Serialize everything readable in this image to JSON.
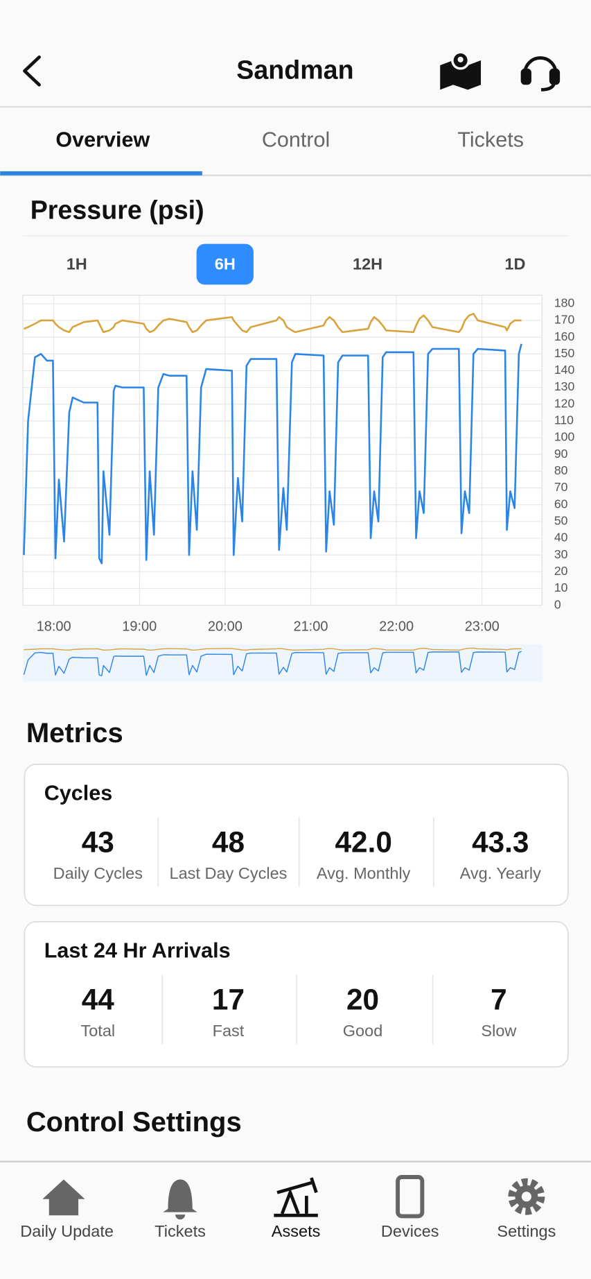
{
  "header": {
    "title": "Sandman"
  },
  "tabs": [
    "Overview",
    "Control",
    "Tickets"
  ],
  "section_title": "Pressure (psi)",
  "ranges": [
    "1H",
    "6H",
    "12H",
    "1D"
  ],
  "chart_data": {
    "type": "line",
    "x": [
      17.65,
      17.7,
      17.78,
      17.85,
      17.92,
      17.99,
      18.02,
      18.06,
      18.12,
      18.18,
      18.22,
      18.35,
      18.51,
      18.53,
      18.56,
      18.58,
      18.65,
      18.7,
      18.72,
      18.8,
      19.05,
      19.08,
      19.12,
      19.17,
      19.22,
      19.28,
      19.35,
      19.55,
      19.58,
      19.62,
      19.67,
      19.72,
      19.78,
      20.08,
      20.1,
      20.15,
      20.2,
      20.25,
      20.3,
      20.6,
      20.63,
      20.68,
      20.72,
      20.78,
      20.82,
      21.15,
      21.18,
      21.22,
      21.27,
      21.32,
      21.37,
      21.67,
      21.7,
      21.74,
      21.79,
      21.84,
      21.88,
      22.2,
      22.23,
      22.27,
      22.32,
      22.37,
      22.42,
      22.73,
      22.76,
      22.8,
      22.85,
      22.9,
      22.95,
      23.27,
      23.29,
      23.33,
      23.38,
      23.43,
      23.46
    ],
    "series": [
      {
        "color": "#d9a23a",
        "values": [
          165,
          166,
          168,
          170,
          170,
          170,
          168,
          166,
          164,
          163,
          166,
          169,
          170,
          168,
          165,
          163,
          164,
          166,
          168,
          170,
          168,
          165,
          163,
          164,
          167,
          170,
          171,
          169,
          166,
          163,
          164,
          167,
          170,
          172,
          170,
          167,
          164,
          163,
          166,
          170,
          172,
          170,
          166,
          164,
          163,
          167,
          170,
          172,
          170,
          166,
          163,
          165,
          169,
          172,
          170,
          167,
          164,
          163,
          167,
          171,
          173,
          170,
          166,
          163,
          165,
          170,
          173,
          174,
          170,
          166,
          164,
          168,
          170,
          170,
          170
        ]
      },
      {
        "color": "#2a85e6",
        "values": [
          30,
          110,
          148,
          150,
          146,
          146,
          28,
          75,
          38,
          115,
          124,
          121,
          121,
          28,
          25,
          80,
          42,
          128,
          131,
          130,
          130,
          27,
          80,
          42,
          130,
          138,
          137,
          137,
          30,
          80,
          45,
          130,
          141,
          140,
          30,
          76,
          50,
          143,
          147,
          147,
          33,
          70,
          45,
          145,
          150,
          149,
          32,
          68,
          48,
          145,
          149,
          149,
          40,
          68,
          50,
          148,
          151,
          151,
          40,
          68,
          55,
          150,
          153,
          153,
          43,
          68,
          55,
          150,
          153,
          152,
          45,
          68,
          58,
          150,
          156
        ]
      }
    ],
    "xlim": [
      17.64,
      23.7
    ],
    "xticks": [
      {
        "value": 18,
        "label": "18:00"
      },
      {
        "value": 19,
        "label": "19:00"
      },
      {
        "value": 20,
        "label": "20:00"
      },
      {
        "value": 21,
        "label": "21:00"
      },
      {
        "value": 22,
        "label": "22:00"
      },
      {
        "value": 23,
        "label": "23:00"
      }
    ],
    "ylim": [
      0,
      185
    ],
    "yticks": [
      0,
      10,
      20,
      30,
      40,
      50,
      60,
      70,
      80,
      90,
      100,
      110,
      120,
      130,
      140,
      150,
      160,
      170,
      180
    ],
    "grid": true
  },
  "metrics": {
    "title": "Metrics",
    "cards": [
      {
        "title": "Cycles",
        "items": [
          {
            "value": "43",
            "label": "Daily Cycles"
          },
          {
            "value": "48",
            "label": "Last Day Cycles"
          },
          {
            "value": "42.0",
            "label": "Avg. Monthly"
          },
          {
            "value": "43.3",
            "label": "Avg. Yearly"
          }
        ]
      },
      {
        "title": "Last 24 Hr Arrivals",
        "items": [
          {
            "value": "44",
            "label": "Total"
          },
          {
            "value": "17",
            "label": "Fast"
          },
          {
            "value": "20",
            "label": "Good"
          },
          {
            "value": "7",
            "label": "Slow"
          }
        ]
      }
    ]
  },
  "control_settings": "Control Settings",
  "nav": [
    "Daily Update",
    "Tickets",
    "Assets",
    "Devices",
    "Settings"
  ]
}
